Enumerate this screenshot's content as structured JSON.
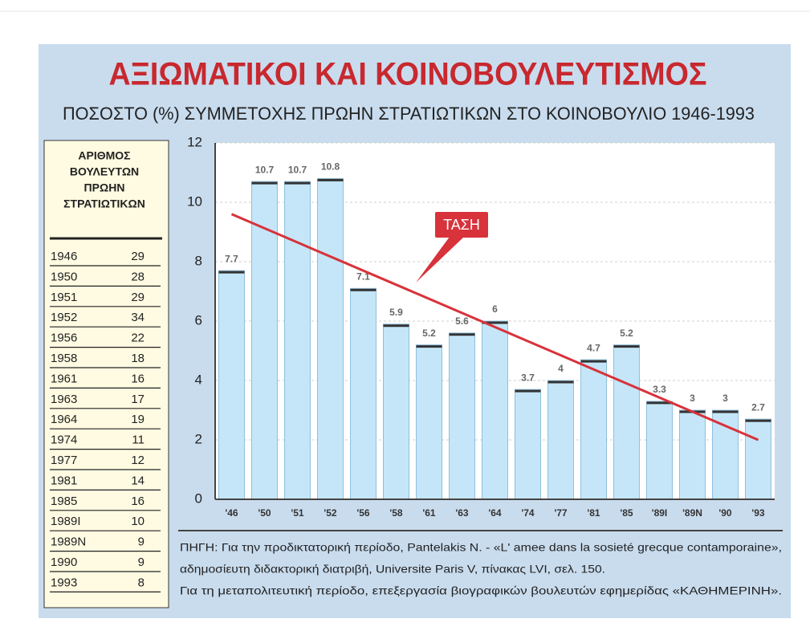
{
  "chart_data": {
    "type": "bar",
    "title": "ΑΞΙΩΜΑΤΙΚΟΙ ΚΑΙ ΚΟΙΝΟΒΟΥΛΕΥΤΙΣΜΟΣ",
    "subtitle": "ΠΟΣΟΣΤΟ (%) ΣΥΜΜΕΤΟΧΗΣ ΠΡΩΗΝ ΣΤΡΑΤΙΩΤΙΚΩΝ ΣΤΟ ΚΟΙΝΟΒΟΥΛΙΟ 1946-1993",
    "categories": [
      "'46",
      "'50",
      "'51",
      "'52",
      "'56",
      "'58",
      "'61",
      "'63",
      "'64",
      "'74",
      "'77",
      "'81",
      "'85",
      "'89I",
      "'89N",
      "'90",
      "'93"
    ],
    "values": [
      7.7,
      10.7,
      10.7,
      10.8,
      7.1,
      5.9,
      5.2,
      5.6,
      6,
      3.7,
      4,
      4.7,
      5.2,
      3.3,
      3,
      3,
      2.7
    ],
    "color": "#c4e6f8",
    "trend": {
      "name": "ΤΑΣΗ",
      "values": [
        9.6,
        2.0
      ],
      "color": "#d8323a"
    },
    "ylim": [
      0,
      12
    ],
    "yticks": [
      0,
      2,
      4,
      6,
      8,
      10,
      12
    ],
    "grid": true
  },
  "table": {
    "header_lines": [
      "ΑΡΙΘΜΟΣ",
      "ΒΟΥΛΕΥΤΩΝ",
      "ΠΡΩΗΝ",
      "ΣΤΡΑΤΙΩΤΙΚΩΝ"
    ],
    "rows": [
      [
        "1946",
        "29"
      ],
      [
        "1950",
        "28"
      ],
      [
        "1951",
        "29"
      ],
      [
        "1952",
        "34"
      ],
      [
        "1956",
        "22"
      ],
      [
        "1958",
        "18"
      ],
      [
        "1961",
        "16"
      ],
      [
        "1963",
        "17"
      ],
      [
        "1964",
        "19"
      ],
      [
        "1974",
        "11"
      ],
      [
        "1977",
        "12"
      ],
      [
        "1981",
        "14"
      ],
      [
        "1985",
        "16"
      ],
      [
        "1989I",
        "10"
      ],
      [
        "1989N",
        "9"
      ],
      [
        "1990",
        "9"
      ],
      [
        "1993",
        "8"
      ]
    ]
  },
  "source_lines": [
    "ΠΗΓΗ: Για την προδικτατορική περίοδο, Pantelakis N. - «L' amee dans la sosieté grecque contamporaine»,",
    "αδημοσίευτη διδακτορική διατριβή, Universite Paris V, πίνακας LVI, σελ. 150.",
    "Για τη μεταπολιτευτική περίοδο, επεξεργασία βιογραφικών βουλευτών εφημερίδας «ΚΑΘΗΜΕΡΙΝΗ»."
  ]
}
